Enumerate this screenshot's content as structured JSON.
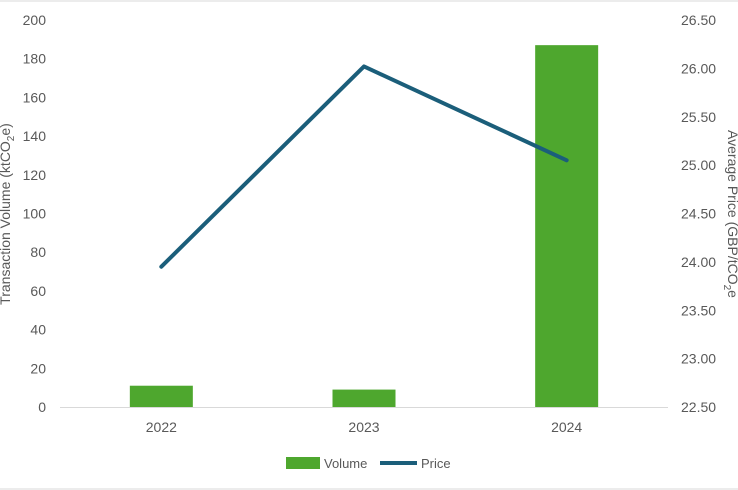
{
  "chart_data": {
    "type": "bar+line",
    "categories": [
      "2022",
      "2023",
      "2024"
    ],
    "series": [
      {
        "name": "Volume",
        "type": "bar",
        "axis": "left",
        "color": "#4ea72e",
        "values": [
          11,
          9,
          187
        ]
      },
      {
        "name": "Price",
        "type": "line",
        "axis": "right",
        "color": "#1b5e7a",
        "values": [
          23.95,
          26.02,
          25.05
        ]
      }
    ],
    "ylabel": "Transaction Volume (ktCO2e)",
    "ylabel_parts": [
      "Transaction Volume (ktCO",
      "2",
      "e)"
    ],
    "y2label": "Average Price (GBP/tCO",
    "y2label_parts": [
      "Average Price (GBP/tCO",
      "2",
      "e"
    ],
    "ylim": [
      0,
      200
    ],
    "y_ticks": [
      "0",
      "20",
      "40",
      "60",
      "80",
      "100",
      "120",
      "140",
      "160",
      "180",
      "200"
    ],
    "y2lim": [
      22.5,
      26.5
    ],
    "y2_ticks": [
      "22.50",
      "23.00",
      "23.50",
      "24.00",
      "24.50",
      "25.00",
      "25.50",
      "26.00",
      "26.50"
    ],
    "grid": false,
    "legend": "bottom-center"
  }
}
